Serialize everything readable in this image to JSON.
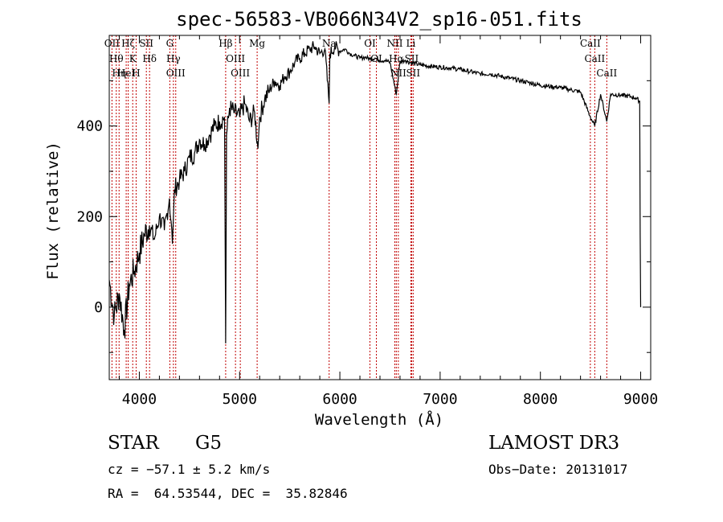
{
  "chart_data": {
    "type": "line",
    "title": "spec-56583-VB066N34V2_sp16-051.fits",
    "xlabel": "Wavelength (Å)",
    "ylabel": "Flux (relative)",
    "xlim": [
      3700,
      9100
    ],
    "ylim": [
      -160,
      600
    ],
    "xticks": [
      4000,
      5000,
      6000,
      7000,
      8000,
      9000
    ],
    "yticks": [
      0,
      200,
      400
    ],
    "series": [
      {
        "name": "spectrum",
        "x": [
          3700,
          3750,
          3800,
          3850,
          3900,
          3950,
          4000,
          4050,
          4100,
          4150,
          4200,
          4250,
          4300,
          4330,
          4350,
          4400,
          4450,
          4500,
          4550,
          4600,
          4650,
          4700,
          4750,
          4800,
          4850,
          4861,
          4870,
          4900,
          4950,
          5000,
          5050,
          5100,
          5150,
          5183,
          5200,
          5250,
          5300,
          5350,
          5400,
          5450,
          5500,
          5550,
          5600,
          5650,
          5700,
          5750,
          5800,
          5850,
          5893,
          5900,
          5950,
          6000,
          6050,
          6100,
          6150,
          6200,
          6250,
          6300,
          6350,
          6400,
          6450,
          6500,
          6563,
          6600,
          6650,
          6700,
          6800,
          6900,
          7000,
          7100,
          7200,
          7300,
          7400,
          7500,
          7600,
          7700,
          7800,
          7900,
          8000,
          8100,
          8200,
          8300,
          8400,
          8498,
          8542,
          8600,
          8662,
          8700,
          8800,
          8900,
          8950,
          8990,
          8995,
          9000
        ],
        "y": [
          60,
          -20,
          30,
          -50,
          50,
          80,
          120,
          160,
          180,
          150,
          200,
          170,
          240,
          140,
          260,
          280,
          300,
          330,
          340,
          370,
          360,
          380,
          400,
          410,
          420,
          -80,
          380,
          440,
          430,
          420,
          450,
          410,
          430,
          350,
          420,
          460,
          480,
          500,
          490,
          510,
          520,
          540,
          550,
          560,
          570,
          575,
          560,
          570,
          450,
          560,
          575,
          565,
          570,
          560,
          555,
          550,
          552,
          548,
          550,
          545,
          545,
          540,
          470,
          542,
          545,
          540,
          535,
          532,
          530,
          528,
          525,
          520,
          515,
          515,
          510,
          505,
          500,
          495,
          490,
          487,
          485,
          480,
          475,
          420,
          400,
          470,
          410,
          470,
          468,
          465,
          462,
          455,
          160,
          0
        ]
      }
    ],
    "lines": [
      {
        "wl": 3727,
        "label": "OII"
      },
      {
        "wl": 3770,
        "label": "Hθ"
      },
      {
        "wl": 3798,
        "label": "Hη"
      },
      {
        "wl": 3869,
        "label": "HeI"
      },
      {
        "wl": 3889,
        "label": "Hζ"
      },
      {
        "wl": 3934,
        "label": "K"
      },
      {
        "wl": 3968,
        "label": "H"
      },
      {
        "wl": 4070,
        "label": "SII"
      },
      {
        "wl": 4102,
        "label": "Hδ"
      },
      {
        "wl": 4304,
        "label": "G"
      },
      {
        "wl": 4340,
        "label": "Hγ"
      },
      {
        "wl": 4363,
        "label": "OIII"
      },
      {
        "wl": 4861,
        "label": "Hβ"
      },
      {
        "wl": 4959,
        "label": "OIII"
      },
      {
        "wl": 5007,
        "label": "OIII"
      },
      {
        "wl": 5175,
        "label": "Mg"
      },
      {
        "wl": 5893,
        "label": "Na"
      },
      {
        "wl": 6300,
        "label": "OI"
      },
      {
        "wl": 6364,
        "label": "OI"
      },
      {
        "wl": 6548,
        "label": "NII"
      },
      {
        "wl": 6563,
        "label": "Hα"
      },
      {
        "wl": 6583,
        "label": "NII"
      },
      {
        "wl": 6708,
        "label": "Li"
      },
      {
        "wl": 6716,
        "label": "SII"
      },
      {
        "wl": 6731,
        "label": "SII"
      },
      {
        "wl": 8498,
        "label": "CaII"
      },
      {
        "wl": 8542,
        "label": "CaII"
      },
      {
        "wl": 8662,
        "label": "CaII"
      }
    ]
  },
  "footer": {
    "class": "STAR",
    "subclass": "G5",
    "survey": "LAMOST DR3",
    "cz": "cz = −57.1 ± 5.2 km/s",
    "obs_date": "Obs−Date: 20131017",
    "coords": "RA =  64.53544, DEC =  35.82846"
  }
}
